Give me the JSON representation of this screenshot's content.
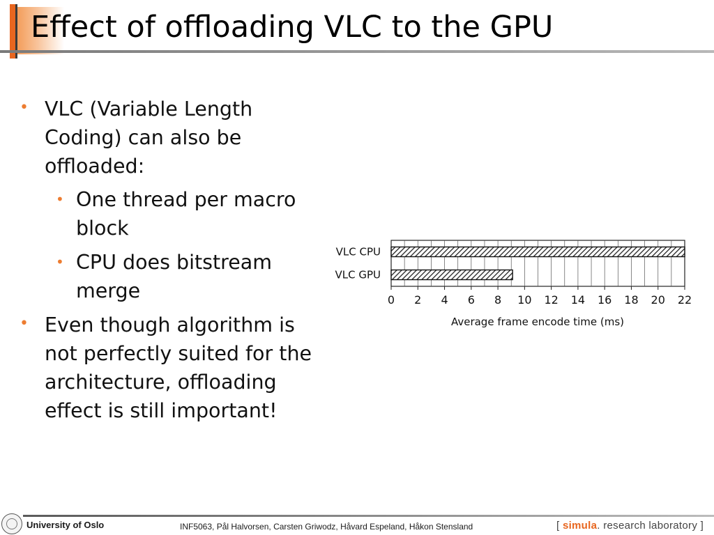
{
  "slide": {
    "title": "Effect of offloading VLC to the GPU",
    "bullets": [
      {
        "level": 1,
        "lines": [
          "VLC (Variable Length",
          "Coding) can also be",
          "offloaded:"
        ]
      },
      {
        "level": 2,
        "lines": [
          "One thread per macro",
          "block"
        ]
      },
      {
        "level": 2,
        "lines": [
          "CPU does bitstream",
          "merge"
        ]
      },
      {
        "level": 1,
        "lines": [
          "Even though algorithm is",
          "not perfectly suited for the",
          "architecture, offloading",
          "effect is still important!"
        ]
      }
    ],
    "bullet_symbol": "•",
    "accent_color": "#ed7d31"
  },
  "chart_data": {
    "type": "bar",
    "orientation": "horizontal",
    "categories": [
      "VLC CPU",
      "VLC GPU"
    ],
    "values": [
      22,
      9.1
    ],
    "xlabel": "Average frame encode time (ms)",
    "xlim": [
      0,
      22
    ],
    "xticks": [
      0,
      2,
      4,
      6,
      8,
      10,
      12,
      14,
      16,
      18,
      20,
      22
    ],
    "grid": true,
    "bar_fill": "diagonal-hatch"
  },
  "footer": {
    "university": "University of Oslo",
    "credits": "INF5063, Pål Halvorsen, Carsten Griwodz, Håvard Espeland, Håkon Stensland",
    "lab_bracket_open": "[",
    "lab_brand": "simula",
    "lab_rest": ". research laboratory",
    "lab_bracket_close": "]"
  }
}
